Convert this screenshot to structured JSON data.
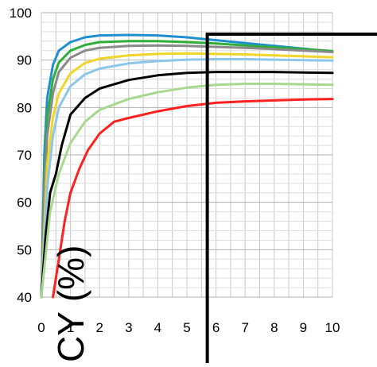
{
  "chart_data": {
    "type": "line",
    "title": "",
    "xlabel": "",
    "ylabel": "CY (%)",
    "xlim": [
      0,
      10
    ],
    "ylim": [
      40,
      100
    ],
    "x_ticks": [
      "0",
      "1",
      "2",
      "3",
      "4",
      "5",
      "6",
      "7",
      "8",
      "9",
      "10"
    ],
    "y_ticks": [
      "40",
      "50",
      "60",
      "70",
      "80",
      "90",
      "100"
    ],
    "grid": true,
    "legend": "none",
    "marker_x": 5.7,
    "series": [
      {
        "color": "#1f8fd0",
        "x": [
          0,
          0.1,
          0.2,
          0.4,
          0.6,
          1,
          1.5,
          2,
          3,
          4,
          5,
          6,
          7,
          8,
          9,
          10
        ],
        "y": [
          40,
          70,
          82,
          89,
          92,
          93.8,
          94.8,
          95.2,
          95.3,
          95.2,
          94.8,
          94.2,
          93.6,
          93,
          92.4,
          91.8
        ]
      },
      {
        "color": "#2fae3a",
        "x": [
          0,
          0.1,
          0.2,
          0.4,
          0.6,
          1,
          1.5,
          2,
          3,
          4,
          5,
          6,
          7,
          8,
          9,
          10
        ],
        "y": [
          40,
          65,
          78,
          86,
          89.5,
          92,
          93.2,
          93.8,
          94,
          94,
          93.8,
          93.5,
          93.1,
          92.7,
          92.3,
          91.9
        ]
      },
      {
        "color": "#8a8a8a",
        "x": [
          0,
          0.1,
          0.2,
          0.4,
          0.6,
          1,
          1.5,
          2,
          3,
          4,
          5,
          6,
          7,
          8,
          9,
          10
        ],
        "y": [
          40,
          62,
          74,
          83,
          87.5,
          90.5,
          92,
          92.6,
          93,
          93.1,
          93,
          92.8,
          92.6,
          92.3,
          92,
          91.7
        ]
      },
      {
        "color": "#f0d52a",
        "x": [
          0,
          0.2,
          0.4,
          0.6,
          1,
          1.5,
          2,
          3,
          4,
          5,
          6,
          7,
          8,
          9,
          10
        ],
        "y": [
          40,
          68,
          78,
          83,
          87.2,
          89.4,
          90.3,
          91,
          91.3,
          91.4,
          91.3,
          91.2,
          91,
          90.8,
          90.6
        ]
      },
      {
        "color": "#8ec6ea",
        "x": [
          0,
          0.2,
          0.4,
          0.6,
          1,
          1.5,
          2,
          3,
          4,
          5,
          6,
          7,
          8,
          9,
          10
        ],
        "y": [
          40,
          63,
          74,
          80,
          84.5,
          87,
          88.2,
          89.3,
          89.8,
          90.1,
          90.2,
          90.2,
          90.1,
          90,
          89.9
        ]
      },
      {
        "color": "#000000",
        "x": [
          0,
          0.15,
          0.3,
          0.5,
          0.7,
          1,
          1.5,
          2,
          3,
          4,
          5,
          6,
          7,
          8,
          9,
          10
        ],
        "y": [
          40,
          53,
          62,
          66,
          72,
          78.5,
          82,
          84,
          85.8,
          86.8,
          87.3,
          87.5,
          87.5,
          87.5,
          87.4,
          87.3
        ]
      },
      {
        "color": "#a8d890",
        "x": [
          0,
          0.3,
          0.6,
          1,
          1.5,
          2,
          3,
          4,
          5,
          6,
          7,
          8,
          9,
          10
        ],
        "y": [
          40,
          58,
          66,
          72.5,
          77,
          79.5,
          81.8,
          83.2,
          84.2,
          84.8,
          85,
          85,
          84.9,
          84.8
        ]
      },
      {
        "color": "#ff2020",
        "x": [
          0.4,
          0.6,
          0.8,
          1,
          1.3,
          1.6,
          2,
          2.5,
          3,
          4,
          5,
          6,
          7,
          8,
          9,
          10
        ],
        "y": [
          40,
          48,
          56,
          62,
          67,
          71,
          74.5,
          77,
          77.8,
          79.2,
          80.3,
          81,
          81.3,
          81.5,
          81.7,
          81.8
        ]
      }
    ]
  }
}
